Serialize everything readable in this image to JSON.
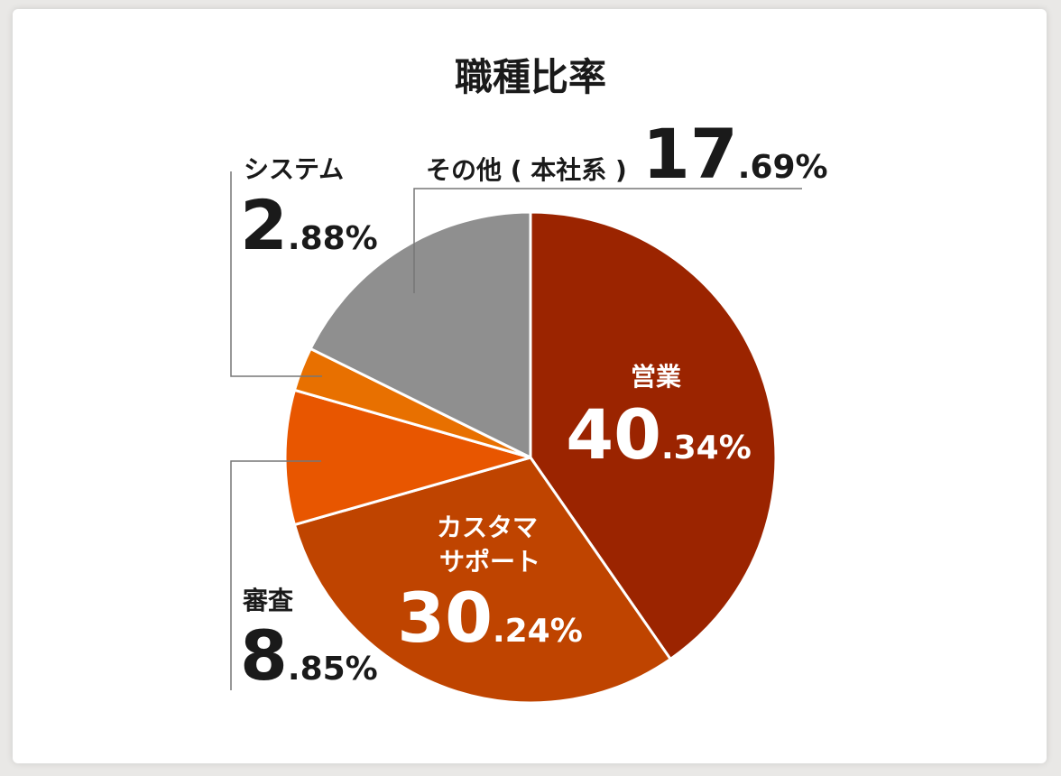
{
  "chart_data": {
    "type": "pie",
    "title": "職種比率",
    "slices": [
      {
        "label": "営業",
        "int": "40",
        "dec": ".34%",
        "value": 40.34,
        "color": "#9b2400"
      },
      {
        "label_lines": [
          "カスタマ",
          "サポート"
        ],
        "int": "30",
        "dec": ".24%",
        "value": 30.24,
        "color": "#bf4400"
      },
      {
        "label": "審査",
        "int": "8",
        "dec": ".85%",
        "value": 8.85,
        "color": "#e85600"
      },
      {
        "label": "システム",
        "int": "2",
        "dec": ".88%",
        "value": 2.88,
        "color": "#e87000"
      },
      {
        "label": "その他 ( 本社系 )",
        "int": "17",
        "dec": ".69%",
        "value": 17.69,
        "color": "#8f8f8f"
      }
    ],
    "legend": "none"
  }
}
